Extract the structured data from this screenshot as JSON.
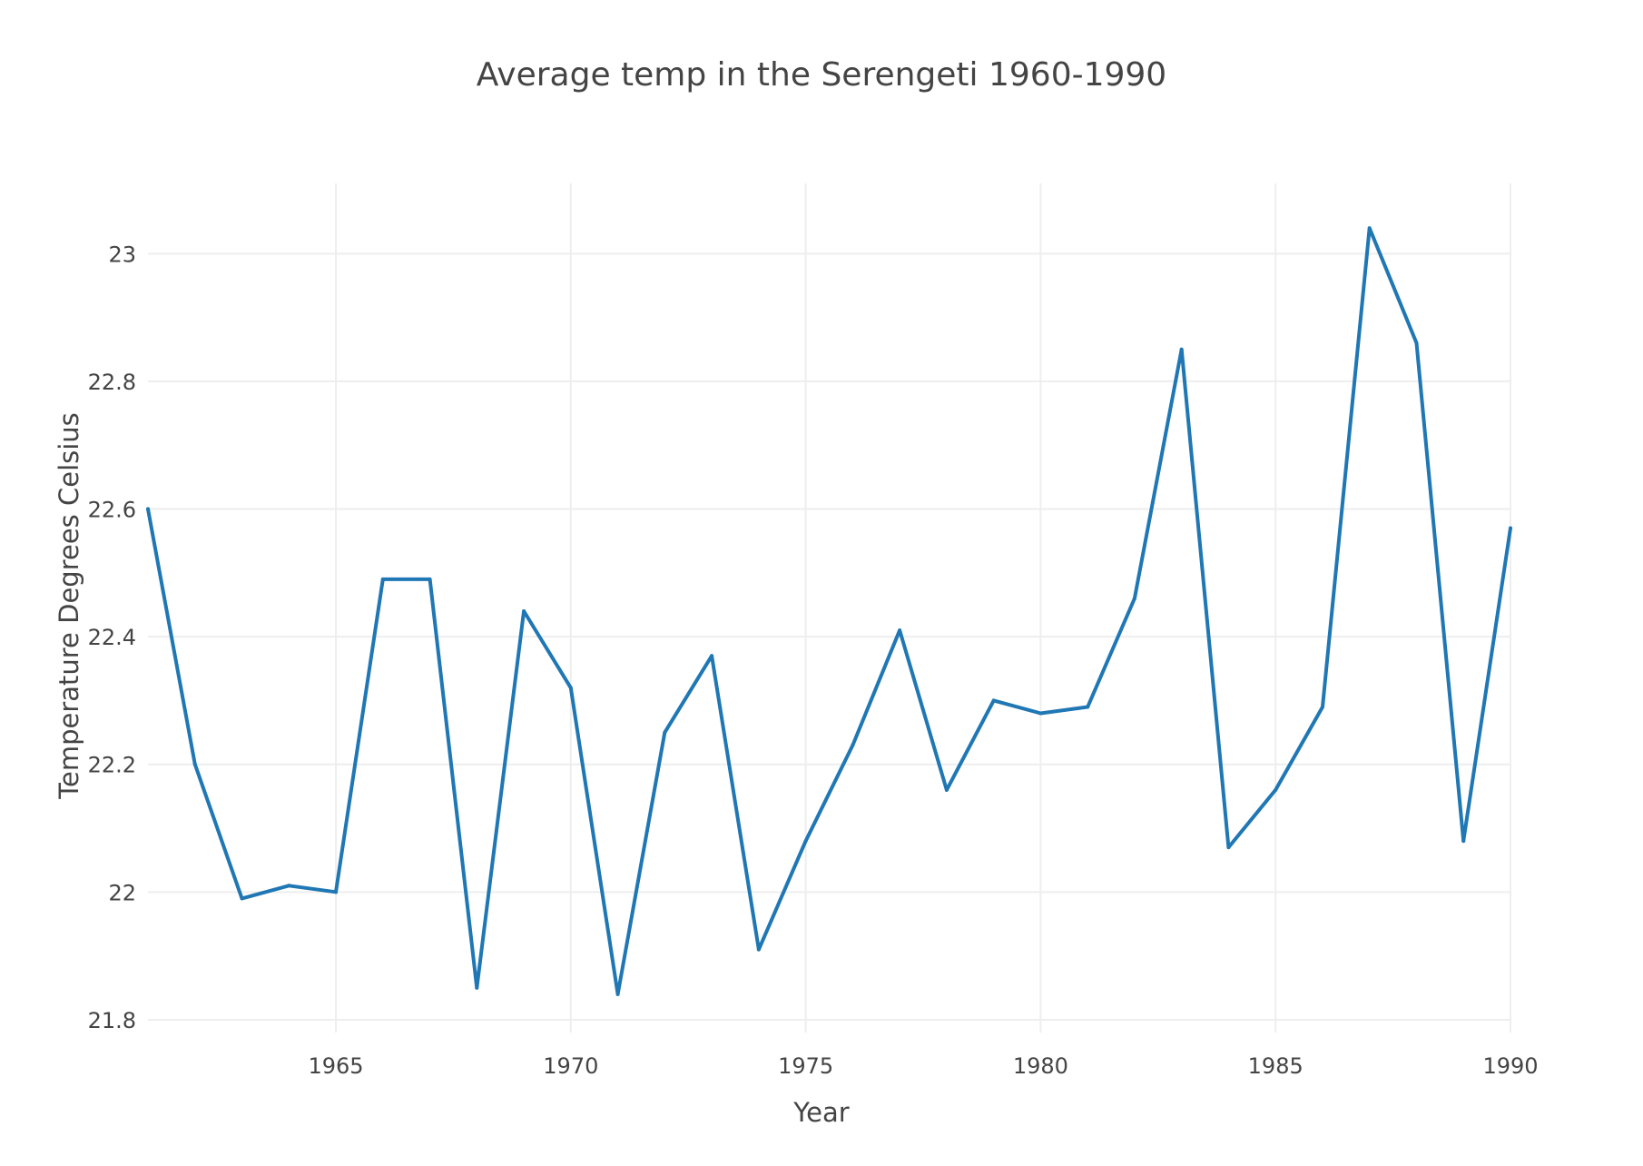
{
  "chart_data": {
    "type": "line",
    "title": "Average temp in the Serengeti 1960-1990",
    "xlabel": "Year",
    "ylabel": "Temperature Degrees Celsius",
    "xlim": [
      1961,
      1990
    ],
    "ylim": [
      21.78,
      23.11
    ],
    "xticks": [
      1965,
      1970,
      1975,
      1980,
      1985,
      1990
    ],
    "yticks": [
      21.8,
      22,
      22.2,
      22.4,
      22.6,
      22.8,
      23
    ],
    "ytick_labels": [
      "21.8",
      "22",
      "22.2",
      "22.4",
      "22.6",
      "22.8",
      "23"
    ],
    "grid": true,
    "line_color": "#1f77b4",
    "grid_color": "#eeeeee",
    "x": [
      1961,
      1962,
      1963,
      1964,
      1965,
      1966,
      1967,
      1968,
      1969,
      1970,
      1971,
      1972,
      1973,
      1974,
      1975,
      1976,
      1977,
      1978,
      1979,
      1980,
      1981,
      1982,
      1983,
      1984,
      1985,
      1986,
      1987,
      1988,
      1989,
      1990
    ],
    "series": [
      {
        "values": [
          22.6,
          22.2,
          21.99,
          22.01,
          22.0,
          22.49,
          22.49,
          21.85,
          22.44,
          22.32,
          21.84,
          22.25,
          22.37,
          21.91,
          22.08,
          22.23,
          22.41,
          22.16,
          22.3,
          22.28,
          22.29,
          22.46,
          22.85,
          22.07,
          22.16,
          22.29,
          23.04,
          22.86,
          22.08,
          22.57
        ]
      }
    ]
  }
}
